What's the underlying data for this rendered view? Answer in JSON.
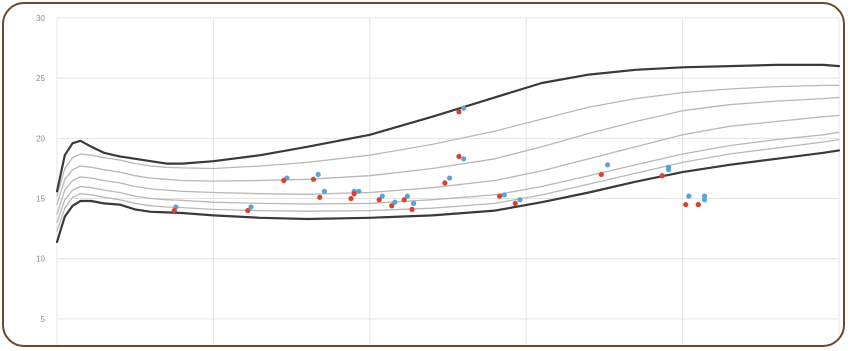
{
  "chart_data": {
    "type": "scatter",
    "title": "",
    "xlabel": "",
    "ylabel": "",
    "ylim": [
      2.5,
      30
    ],
    "y_ticks": [
      "5",
      "10",
      "15",
      "20",
      "25",
      "30"
    ],
    "x_ticks": [
      0,
      1,
      2,
      3,
      4,
      5
    ],
    "xlim": [
      0,
      5
    ],
    "grid": true,
    "legend": "none",
    "series": [
      {
        "kind": "line",
        "style": "dark",
        "color": "#3a3a3a",
        "x": [
          0,
          0.05,
          0.1,
          0.15,
          0.22,
          0.3,
          0.4,
          0.5,
          0.6,
          0.7,
          0.8,
          1.0,
          1.3,
          1.6,
          2.0,
          2.4,
          2.8,
          3.1,
          3.4,
          3.7,
          4.0,
          4.3,
          4.6,
          4.9,
          5.0
        ],
        "y": [
          11.4,
          13.5,
          14.4,
          14.8,
          14.8,
          14.6,
          14.5,
          14.1,
          13.9,
          13.85,
          13.8,
          13.6,
          13.4,
          13.3,
          13.4,
          13.6,
          14.0,
          14.7,
          15.5,
          16.4,
          17.2,
          17.8,
          18.3,
          18.8,
          19.0
        ]
      },
      {
        "kind": "line",
        "style": "light",
        "color": "#b8b8b8",
        "x": [
          0,
          0.05,
          0.1,
          0.15,
          0.22,
          0.3,
          0.4,
          0.5,
          0.6,
          0.7,
          0.8,
          1.0,
          1.3,
          1.6,
          2.0,
          2.4,
          2.8,
          3.1,
          3.4,
          3.7,
          4.0,
          4.3,
          4.6,
          4.9,
          5.0
        ],
        "y": [
          12.3,
          14.2,
          15.1,
          15.4,
          15.3,
          15.1,
          14.9,
          14.6,
          14.4,
          14.3,
          14.25,
          14.1,
          14.0,
          13.95,
          14.0,
          14.2,
          14.6,
          15.3,
          16.2,
          17.1,
          18.0,
          18.7,
          19.2,
          19.7,
          19.9
        ]
      },
      {
        "kind": "line",
        "style": "light",
        "color": "#b8b8b8",
        "x": [
          0,
          0.05,
          0.1,
          0.15,
          0.22,
          0.3,
          0.4,
          0.5,
          0.6,
          0.7,
          0.8,
          1.0,
          1.3,
          1.6,
          2.0,
          2.4,
          2.8,
          3.1,
          3.4,
          3.7,
          4.0,
          4.3,
          4.6,
          4.9,
          5.0
        ],
        "y": [
          13.0,
          14.9,
          15.7,
          16.0,
          15.9,
          15.7,
          15.5,
          15.2,
          15.0,
          14.9,
          14.85,
          14.7,
          14.6,
          14.55,
          14.6,
          14.9,
          15.3,
          16.0,
          16.9,
          17.8,
          18.7,
          19.4,
          19.9,
          20.3,
          20.5
        ]
      },
      {
        "kind": "line",
        "style": "light",
        "color": "#b8b8b8",
        "x": [
          0,
          0.05,
          0.1,
          0.15,
          0.22,
          0.3,
          0.4,
          0.5,
          0.6,
          0.7,
          0.8,
          1.0,
          1.3,
          1.6,
          2.0,
          2.4,
          2.8,
          3.1,
          3.4,
          3.7,
          4.0,
          4.3,
          4.6,
          4.9,
          5.0
        ],
        "y": [
          13.7,
          15.7,
          16.5,
          16.8,
          16.7,
          16.5,
          16.3,
          16.0,
          15.8,
          15.7,
          15.6,
          15.5,
          15.4,
          15.35,
          15.5,
          15.9,
          16.5,
          17.3,
          18.3,
          19.3,
          20.3,
          21.0,
          21.4,
          21.8,
          21.9
        ]
      },
      {
        "kind": "line",
        "style": "light",
        "color": "#b8b8b8",
        "x": [
          0,
          0.05,
          0.1,
          0.15,
          0.22,
          0.3,
          0.4,
          0.5,
          0.6,
          0.7,
          0.8,
          1.0,
          1.3,
          1.6,
          2.0,
          2.4,
          2.8,
          3.1,
          3.4,
          3.7,
          4.0,
          4.3,
          4.6,
          4.9,
          5.0
        ],
        "y": [
          14.5,
          16.6,
          17.4,
          17.7,
          17.6,
          17.4,
          17.2,
          16.9,
          16.7,
          16.6,
          16.5,
          16.45,
          16.5,
          16.6,
          16.9,
          17.5,
          18.3,
          19.3,
          20.4,
          21.4,
          22.3,
          22.8,
          23.1,
          23.3,
          23.4
        ]
      },
      {
        "kind": "line",
        "style": "light",
        "color": "#b8b8b8",
        "x": [
          0,
          0.05,
          0.1,
          0.15,
          0.22,
          0.3,
          0.4,
          0.5,
          0.6,
          0.7,
          0.8,
          1.0,
          1.3,
          1.6,
          2.0,
          2.4,
          2.8,
          3.1,
          3.4,
          3.7,
          4.0,
          4.3,
          4.6,
          4.9,
          5.0
        ],
        "y": [
          15.2,
          17.5,
          18.4,
          18.7,
          18.6,
          18.4,
          18.2,
          17.9,
          17.7,
          17.6,
          17.55,
          17.5,
          17.7,
          18.0,
          18.6,
          19.5,
          20.6,
          21.6,
          22.6,
          23.3,
          23.8,
          24.1,
          24.3,
          24.4,
          24.4
        ]
      },
      {
        "kind": "line",
        "style": "dark",
        "color": "#3a3a3a",
        "x": [
          0,
          0.05,
          0.1,
          0.15,
          0.22,
          0.3,
          0.4,
          0.5,
          0.6,
          0.7,
          0.8,
          1.0,
          1.3,
          1.6,
          2.0,
          2.4,
          2.8,
          3.1,
          3.4,
          3.7,
          4.0,
          4.3,
          4.6,
          4.9,
          5.0
        ],
        "y": [
          15.6,
          18.6,
          19.6,
          19.8,
          19.3,
          18.8,
          18.5,
          18.3,
          18.1,
          17.9,
          17.9,
          18.1,
          18.6,
          19.3,
          20.3,
          21.8,
          23.4,
          24.6,
          25.3,
          25.7,
          25.9,
          26.0,
          26.1,
          26.1,
          26.0
        ]
      },
      {
        "kind": "points",
        "name": "",
        "color": "#5ba3d6",
        "x": [
          0.76,
          1.24,
          1.47,
          1.67,
          1.71,
          1.9,
          1.93,
          2.08,
          2.16,
          2.24,
          2.28,
          2.51,
          2.6,
          2.6,
          2.86,
          2.96,
          3.52,
          3.91,
          3.91,
          4.04,
          4.14,
          4.14
        ],
        "y": [
          14.3,
          14.3,
          16.7,
          17.0,
          15.6,
          15.6,
          15.6,
          15.2,
          14.7,
          15.2,
          14.6,
          16.7,
          18.3,
          22.5,
          15.3,
          14.9,
          17.8,
          17.4,
          17.6,
          15.2,
          14.9,
          15.2
        ]
      },
      {
        "kind": "points",
        "name": "",
        "color": "#d9432a",
        "x": [
          0.75,
          1.22,
          1.45,
          1.64,
          1.68,
          1.88,
          1.9,
          2.06,
          2.14,
          2.22,
          2.27,
          2.48,
          2.57,
          2.57,
          2.83,
          2.93,
          3.48,
          3.87,
          3.87,
          4.02,
          4.1,
          4.1
        ],
        "y": [
          14.0,
          14.0,
          16.5,
          16.6,
          15.1,
          15.0,
          15.4,
          14.9,
          14.4,
          14.9,
          14.1,
          16.3,
          18.5,
          22.2,
          15.2,
          14.6,
          17.0,
          16.9,
          16.9,
          14.5,
          14.5,
          14.5
        ]
      }
    ]
  }
}
